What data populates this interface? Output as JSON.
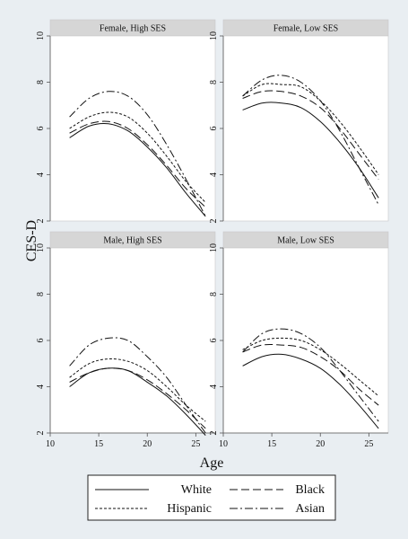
{
  "chart_data": {
    "type": "line",
    "ylabel": "CES-D",
    "xlabel": "Age",
    "xlim": [
      10,
      27
    ],
    "ylim": [
      2,
      10
    ],
    "xticks": [
      10,
      15,
      20,
      25
    ],
    "yticks": [
      2,
      4,
      6,
      8,
      10
    ],
    "grid": false,
    "legend_position": "bottom",
    "series_styles": [
      {
        "name": "White",
        "dash": "solid"
      },
      {
        "name": "Black",
        "dash": "dash"
      },
      {
        "name": "Hispanic",
        "dash": "short-dash"
      },
      {
        "name": "Asian",
        "dash": "dash-dot"
      }
    ],
    "panels": [
      {
        "title": "Female, High SES",
        "x": [
          12,
          14,
          16,
          18,
          20,
          22,
          24,
          26
        ],
        "series": [
          {
            "name": "White",
            "values": [
              5.6,
              6.1,
              6.2,
              5.9,
              5.2,
              4.3,
              3.2,
              2.2
            ]
          },
          {
            "name": "Black",
            "values": [
              5.8,
              6.2,
              6.3,
              6.0,
              5.3,
              4.4,
              3.4,
              2.6
            ]
          },
          {
            "name": "Hispanic",
            "values": [
              6.0,
              6.5,
              6.7,
              6.5,
              5.8,
              4.8,
              3.7,
              2.8
            ]
          },
          {
            "name": "Asian",
            "values": [
              6.5,
              7.3,
              7.6,
              7.4,
              6.6,
              5.3,
              3.8,
              2.2
            ]
          }
        ]
      },
      {
        "title": "Female, Low SES",
        "x": [
          12,
          14,
          16,
          18,
          20,
          22,
          24,
          26
        ],
        "series": [
          {
            "name": "White",
            "values": [
              6.8,
              7.1,
              7.1,
              6.9,
              6.3,
              5.4,
              4.3,
              3.0
            ]
          },
          {
            "name": "Black",
            "values": [
              7.3,
              7.6,
              7.6,
              7.4,
              6.9,
              6.0,
              4.9,
              3.8
            ]
          },
          {
            "name": "Hispanic",
            "values": [
              7.4,
              7.9,
              7.9,
              7.8,
              7.2,
              6.3,
              5.2,
              4.0
            ]
          },
          {
            "name": "Asian",
            "values": [
              7.4,
              8.1,
              8.3,
              8.0,
              7.2,
              5.9,
              4.3,
              2.7
            ]
          }
        ]
      },
      {
        "title": "Male, High SES",
        "x": [
          12,
          14,
          16,
          18,
          20,
          22,
          24,
          26
        ],
        "series": [
          {
            "name": "White",
            "values": [
              4.0,
              4.6,
              4.8,
              4.7,
              4.2,
              3.6,
              2.8,
              1.9
            ]
          },
          {
            "name": "Black",
            "values": [
              4.2,
              4.6,
              4.8,
              4.7,
              4.3,
              3.7,
              3.0,
              2.2
            ]
          },
          {
            "name": "Hispanic",
            "values": [
              4.4,
              5.0,
              5.2,
              5.1,
              4.7,
              4.0,
              3.2,
              2.5
            ]
          },
          {
            "name": "Asian",
            "values": [
              4.9,
              5.8,
              6.1,
              6.0,
              5.3,
              4.4,
              3.2,
              2.0
            ]
          }
        ]
      },
      {
        "title": "Male, Low SES",
        "x": [
          12,
          14,
          16,
          18,
          20,
          22,
          24,
          26
        ],
        "series": [
          {
            "name": "White",
            "values": [
              4.9,
              5.3,
              5.4,
              5.2,
              4.8,
              4.1,
              3.2,
              2.2
            ]
          },
          {
            "name": "Black",
            "values": [
              5.5,
              5.8,
              5.8,
              5.7,
              5.3,
              4.7,
              3.9,
              3.2
            ]
          },
          {
            "name": "Hispanic",
            "values": [
              5.6,
              6.0,
              6.1,
              6.0,
              5.6,
              5.0,
              4.3,
              3.6
            ]
          },
          {
            "name": "Asian",
            "values": [
              5.5,
              6.3,
              6.5,
              6.3,
              5.7,
              4.7,
              3.6,
              2.5
            ]
          }
        ]
      }
    ]
  }
}
